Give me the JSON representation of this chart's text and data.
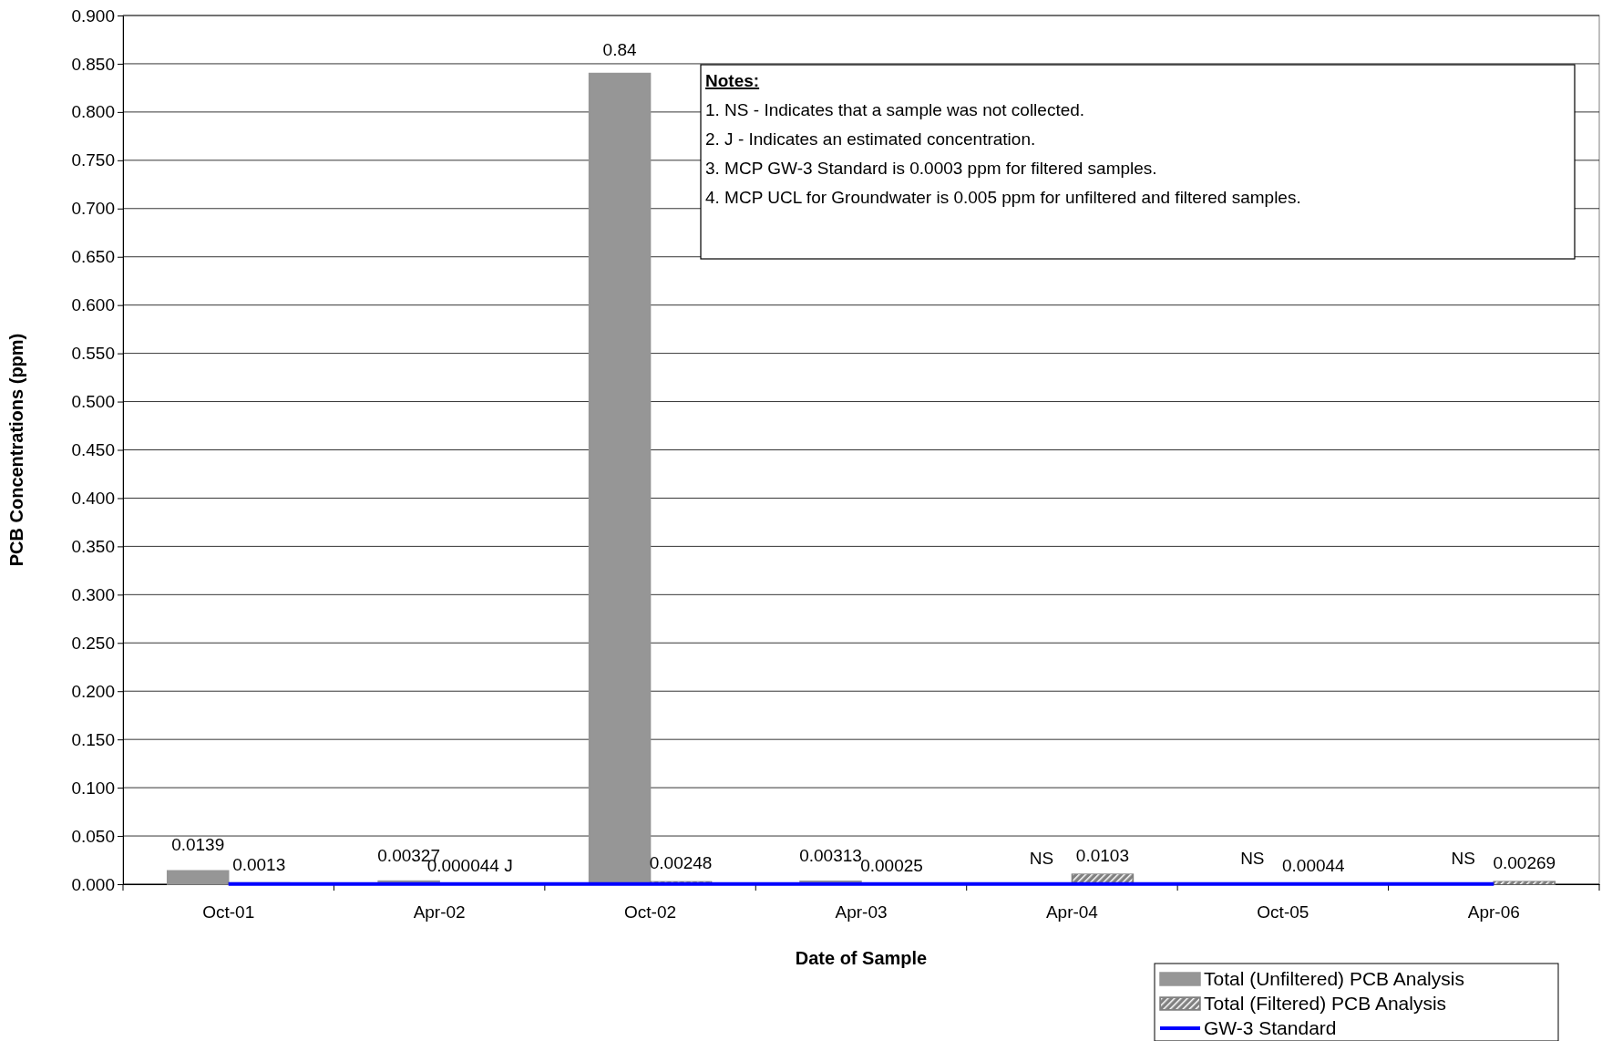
{
  "chart_data": {
    "type": "bar",
    "xlabel": "Date of Sample",
    "ylabel": "PCB Concentrations (ppm)",
    "categories": [
      "Oct-01",
      "Apr-02",
      "Oct-02",
      "Apr-03",
      "Apr-04",
      "Oct-05",
      "Apr-06"
    ],
    "series": [
      {
        "name": "Total (Unfiltered) PCB Analysis",
        "color": "#969696",
        "values": [
          0.0139,
          0.00327,
          0.84,
          0.00313,
          null,
          null,
          null
        ],
        "value_labels": [
          "0.0139",
          "0.00327",
          "0.84",
          "0.00313",
          "NS",
          "NS",
          "NS"
        ]
      },
      {
        "name": "Total (Filtered) PCB Analysis",
        "color": "#808080",
        "values": [
          0.0013,
          4.4e-05,
          0.00248,
          0.00025,
          0.0103,
          0.00044,
          0.00269
        ],
        "value_labels": [
          "0.0013",
          "0.000044 J",
          "0.00248",
          "0.00025",
          "0.0103",
          "0.00044",
          "0.00269"
        ]
      },
      {
        "name": "GW-3 Standard",
        "type": "line",
        "color": "#0000ff",
        "values": [
          0.0003,
          0.0003,
          0.0003,
          0.0003,
          0.0003,
          0.0003,
          0.0003
        ]
      }
    ],
    "ylim": [
      0,
      0.9
    ],
    "yticks": [
      {
        "value": 0,
        "label": "0.000"
      },
      {
        "value": 0.05,
        "label": "0.050"
      },
      {
        "value": 0.1,
        "label": "0.100"
      },
      {
        "value": 0.15,
        "label": "0.150"
      },
      {
        "value": 0.2,
        "label": "0.200"
      },
      {
        "value": 0.25,
        "label": "0.250"
      },
      {
        "value": 0.3,
        "label": "0.300"
      },
      {
        "value": 0.35,
        "label": "0.350"
      },
      {
        "value": 0.4,
        "label": "0.400"
      },
      {
        "value": 0.45,
        "label": "0.450"
      },
      {
        "value": 0.5,
        "label": "0.500"
      },
      {
        "value": 0.55,
        "label": "0.550"
      },
      {
        "value": 0.6,
        "label": "0.600"
      },
      {
        "value": 0.65,
        "label": "0.650"
      },
      {
        "value": 0.7,
        "label": "0.700"
      },
      {
        "value": 0.75,
        "label": "0.750"
      },
      {
        "value": 0.8,
        "label": "0.800"
      },
      {
        "value": 0.85,
        "label": "0.850"
      },
      {
        "value": 0.9,
        "label": "0.900"
      }
    ],
    "grid": "y",
    "legend": "bottom right",
    "marker": "none",
    "line_style": "solid",
    "annotations": [
      "Notes:",
      "1.  NS - Indicates that a sample was not collected.",
      "2.  J - Indicates an estimated concentration.",
      "3.  MCP GW-3 Standard is 0.0003 ppm for filtered samples.",
      "4.  MCP UCL for Groundwater is 0.005 ppm for unfiltered and filtered samples."
    ]
  }
}
